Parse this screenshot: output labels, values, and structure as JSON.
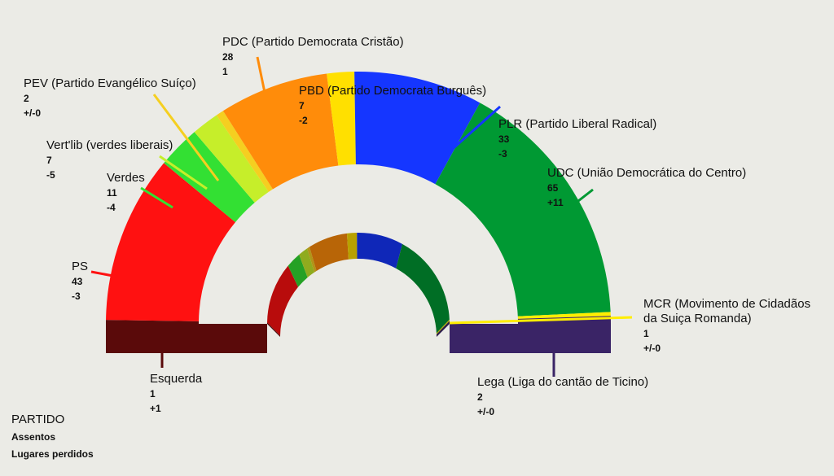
{
  "chart_data": {
    "type": "parliament-semicircle",
    "legend": {
      "title": "PARTIDO",
      "seats_label": "Assentos",
      "change_label": "Lugares perdidos"
    },
    "parties": [
      {
        "name": "Esquerda",
        "seats": 1,
        "change": "+1",
        "color": "#5a0a0a"
      },
      {
        "name": "PS",
        "seats": 43,
        "change": "-3",
        "color": "#ff1111"
      },
      {
        "name": "Verdes",
        "seats": 11,
        "change": "-4",
        "color": "#33e033"
      },
      {
        "name": "Vert'lib (verdes liberais)",
        "seats": 7,
        "change": "-5",
        "color": "#c6ee2a"
      },
      {
        "name": "PEV (Partido Evangélico Suíço)",
        "seats": 2,
        "change": "+/-0",
        "color": "#f5cf20"
      },
      {
        "name": "PDC (Partido Democrata Cristão)",
        "seats": 28,
        "change": "1",
        "color": "#ff8c0a"
      },
      {
        "name": "PBD (Partido Democrata Burguês)",
        "seats": 7,
        "change": "-2",
        "color": "#ffe000"
      },
      {
        "name": "PLR (Partido Liberal Radical)",
        "seats": 33,
        "change": "-3",
        "color": "#1536ff"
      },
      {
        "name": "UDC (União Democrática do Centro)",
        "seats": 65,
        "change": "+11",
        "color": "#009933"
      },
      {
        "name": "MCR (Movimento de Cidadãos da Suiça Romanda)",
        "seats": 1,
        "change": "+/-0",
        "color": "#ffee00"
      },
      {
        "name": "Lega (Liga do cantão de Ticino)",
        "seats": 2,
        "change": "+/-0",
        "color": "#3a2466"
      }
    ]
  }
}
